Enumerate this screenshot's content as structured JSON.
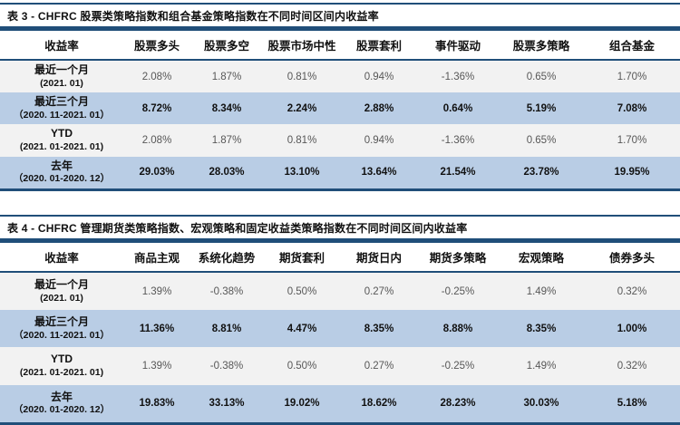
{
  "colors": {
    "border_navy": "#204E79",
    "row_highlight_blue": "#B9CDE5",
    "row_plain_gray": "#F2F2F2",
    "value_plain_text": "#575757",
    "text_ink": "#111111"
  },
  "tables": [
    {
      "title": "表 3 - CHFRC 股票类策略指数和组合基金策略指数在不同时间区间内收益率",
      "headers": [
        "收益率",
        "股票多头",
        "股票多空",
        "股票市场中性",
        "股票套利",
        "事件驱动",
        "股票多策略",
        "组合基金"
      ],
      "rows": [
        {
          "label_line1": "最近一个月",
          "label_line2": "(2021. 01)",
          "values": [
            "2.08%",
            "1.87%",
            "0.81%",
            "0.94%",
            "-1.36%",
            "0.65%",
            "1.70%"
          ]
        },
        {
          "label_line1": "最近三个月",
          "label_line2": "（2020. 11-2021. 01）",
          "values": [
            "8.72%",
            "8.34%",
            "2.24%",
            "2.88%",
            "0.64%",
            "5.19%",
            "7.08%"
          ]
        },
        {
          "label_line1": "YTD",
          "label_line2": "(2021. 01-2021. 01)",
          "values": [
            "2.08%",
            "1.87%",
            "0.81%",
            "0.94%",
            "-1.36%",
            "0.65%",
            "1.70%"
          ]
        },
        {
          "label_line1": "去年",
          "label_line2": "（2020. 01-2020. 12）",
          "values": [
            "29.03%",
            "28.03%",
            "13.10%",
            "13.64%",
            "21.54%",
            "23.78%",
            "19.95%"
          ]
        }
      ]
    },
    {
      "title": "表 4 - CHFRC 管理期货类策略指数、宏观策略和固定收益类策略指数在不同时间区间内收益率",
      "headers": [
        "收益率",
        "商品主观",
        "系统化趋势",
        "期货套利",
        "期货日内",
        "期货多策略",
        "宏观策略",
        "债券多头"
      ],
      "rows": [
        {
          "label_line1": "最近一个月",
          "label_line2": "(2021. 01)",
          "values": [
            "1.39%",
            "-0.38%",
            "0.50%",
            "0.27%",
            "-0.25%",
            "1.49%",
            "0.32%"
          ]
        },
        {
          "label_line1": "最近三个月",
          "label_line2": "（2020. 11-2021. 01）",
          "values": [
            "11.36%",
            "8.81%",
            "4.47%",
            "8.35%",
            "8.88%",
            "8.35%",
            "1.00%"
          ]
        },
        {
          "label_line1": "YTD",
          "label_line2": "(2021. 01-2021. 01)",
          "values": [
            "1.39%",
            "-0.38%",
            "0.50%",
            "0.27%",
            "-0.25%",
            "1.49%",
            "0.32%"
          ]
        },
        {
          "label_line1": "去年",
          "label_line2": "（2020. 01-2020. 12）",
          "values": [
            "19.83%",
            "33.13%",
            "19.02%",
            "18.62%",
            "28.23%",
            "30.03%",
            "5.18%"
          ]
        }
      ]
    }
  ]
}
